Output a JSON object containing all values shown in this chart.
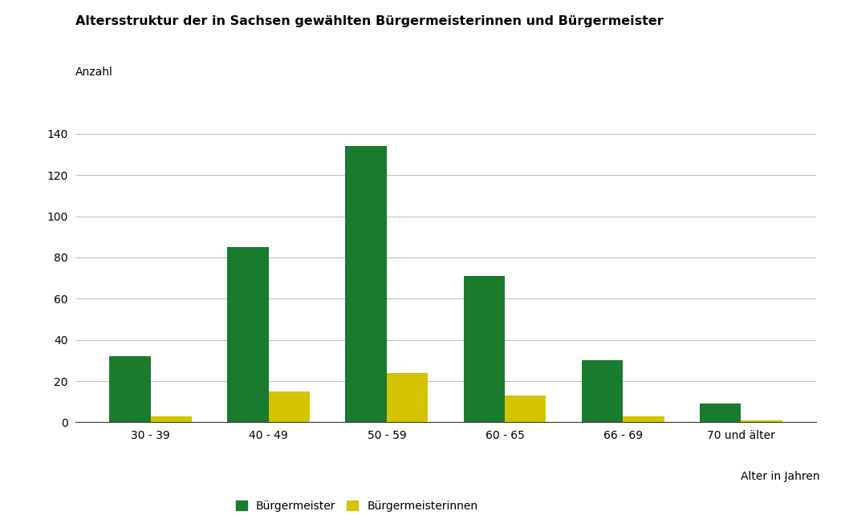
{
  "title": "Altersstruktur der in Sachsen gewählten Bürgermeisterinnen und Bürgermeister",
  "ylabel": "Anzahl",
  "xlabel_right": "Alter in Jahren",
  "categories": [
    "30 - 39",
    "40 - 49",
    "50 - 59",
    "60 - 65",
    "66 - 69",
    "70 und älter"
  ],
  "buergermeister": [
    32,
    85,
    134,
    71,
    30,
    9
  ],
  "buergermeisterinnen": [
    3,
    15,
    24,
    13,
    3,
    1
  ],
  "color_green": "#1a7a2e",
  "color_yellow": "#d4c400",
  "ylim": [
    0,
    150
  ],
  "yticks": [
    0,
    20,
    40,
    60,
    80,
    100,
    120,
    140
  ],
  "legend_buergermeister": "Bürgermeister",
  "legend_buergermeisterinnen": "Bürgermeisterinnen",
  "background_color": "#ffffff",
  "title_fontsize": 11.5,
  "label_fontsize": 10,
  "tick_fontsize": 10,
  "bar_width": 0.35
}
